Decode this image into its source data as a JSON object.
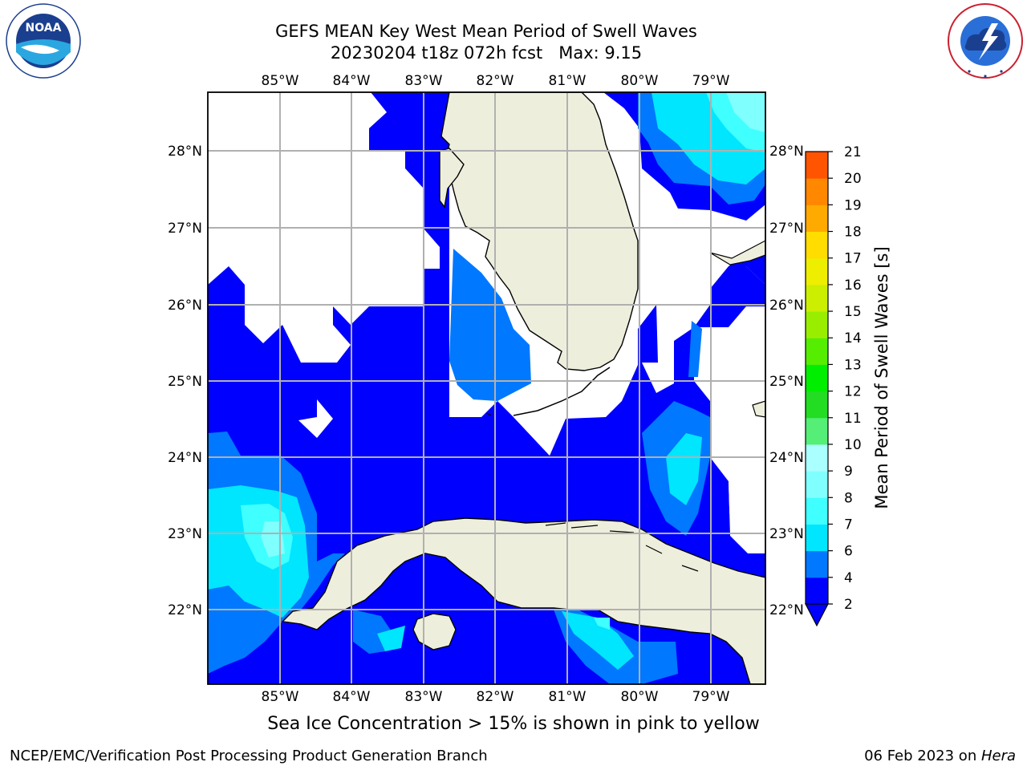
{
  "title": {
    "line1": "GEFS MEAN Key West Mean Period of Swell Waves",
    "line2": "20230204 t18z 072h fcst   Max: 9.15"
  },
  "logos": {
    "noaa": {
      "text": "NOAA",
      "ring_text": "NATIONAL OCEANIC AND ATMOSPHERIC ADMINISTRATION · U.S. DEPARTMENT OF COMMERCE"
    },
    "nws": {
      "ring_text": "NATIONAL WEATHER SERVICE"
    }
  },
  "map": {
    "lon_labels": [
      "85°W",
      "84°W",
      "83°W",
      "82°W",
      "81°W",
      "80°W",
      "79°W"
    ],
    "lat_labels": [
      "28°N",
      "27°N",
      "26°N",
      "25°N",
      "24°N",
      "23°N",
      "22°N"
    ],
    "lon_range": [
      -86,
      -78.25
    ],
    "lat_range": [
      21.05,
      28.75
    ],
    "grid": true,
    "land_color": "#eeeedd",
    "ocean_no_data_color": "#ffffff"
  },
  "colorbar": {
    "label": "Mean Period of Swell Waves [s]",
    "tick_labels": [
      "2",
      "4",
      "6",
      "7",
      "8",
      "9",
      "10",
      "11",
      "12",
      "13",
      "14",
      "15",
      "16",
      "17",
      "18",
      "19",
      "20",
      "21"
    ],
    "colors": [
      "#0000ff",
      "#0078ff",
      "#00e6ff",
      "#40ffff",
      "#80ffff",
      "#aaffff",
      "#55ee77",
      "#22dd22",
      "#00ee00",
      "#55ee00",
      "#99ee00",
      "#ccee00",
      "#eeee00",
      "#ffdd00",
      "#ffaa00",
      "#ff8800",
      "#ff5500",
      "#ff2200",
      "#ff0000"
    ],
    "extend": "min"
  },
  "chart_data": {
    "type": "heatmap",
    "title": "GEFS MEAN Key West Mean Period of Swell Waves",
    "subtitle": "20230204 t18z 072h fcst   Max: 9.15",
    "variable": "Mean Period of Swell Waves [s]",
    "max_value": 9.15,
    "xlabel": "",
    "ylabel": "",
    "xlim": [
      -86,
      -78.25
    ],
    "ylim": [
      21.05,
      28.75
    ],
    "levels": [
      2,
      4,
      6,
      7,
      8,
      9,
      10,
      11,
      12,
      13,
      14,
      15,
      16,
      17,
      18,
      19,
      20,
      21
    ]
  },
  "footer": {
    "note": "Sea Ice Concentration > 15% is shown in pink to yellow",
    "left": "NCEP/EMC/Verification Post Processing Product Generation Branch",
    "date": "06 Feb 2023 on ",
    "host": "Hera"
  }
}
